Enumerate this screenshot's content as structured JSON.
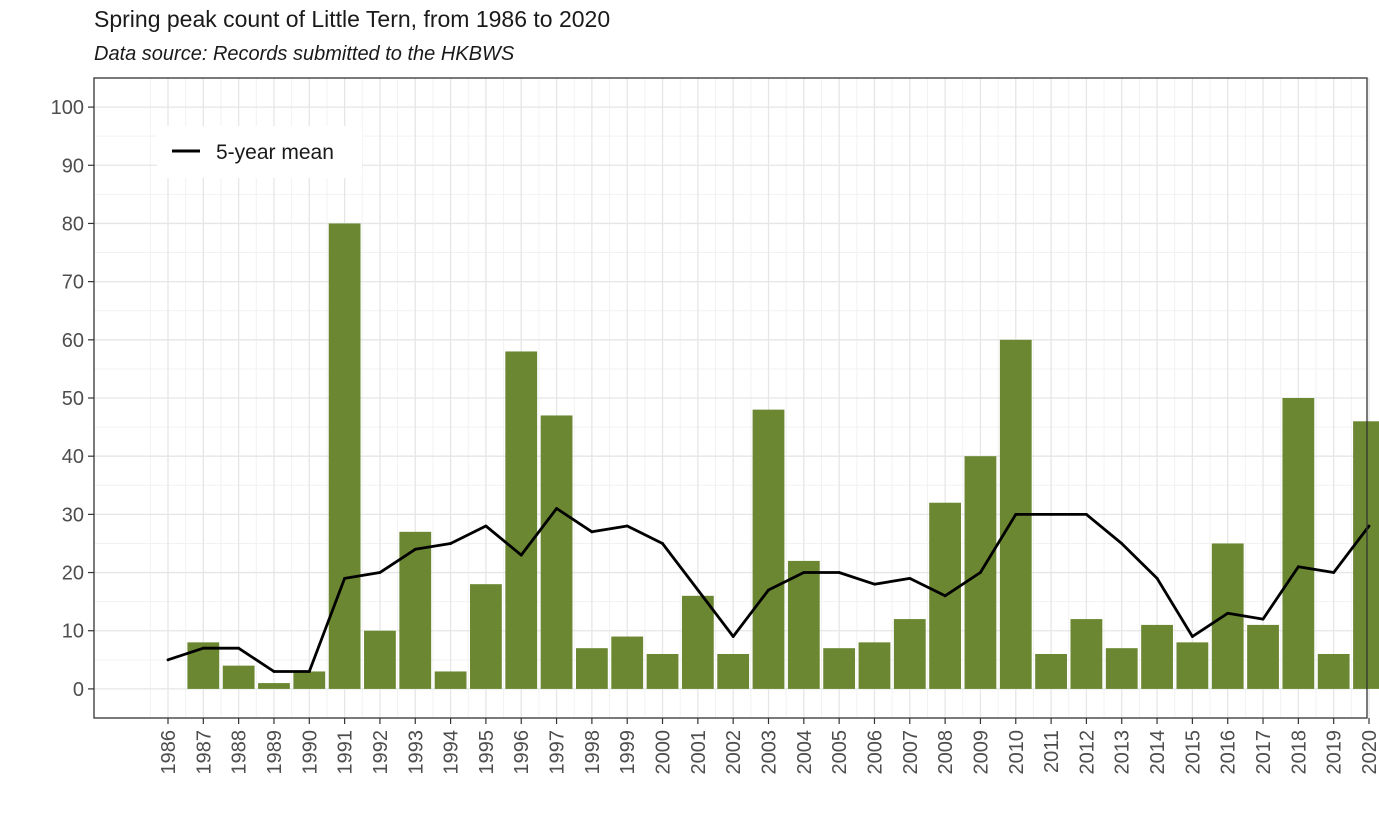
{
  "chart_data": {
    "type": "bar",
    "title": "Spring peak count of Little Tern, from 1986 to 2020",
    "subtitle": "Data source: Records submitted to the HKBWS",
    "xlabel": "",
    "ylabel": "",
    "ylim": [
      -5,
      105
    ],
    "yticks": [
      0,
      10,
      20,
      30,
      40,
      50,
      60,
      70,
      80,
      90,
      100
    ],
    "grid": true,
    "categories": [
      "1986",
      "1987",
      "1988",
      "1989",
      "1990",
      "1991",
      "1992",
      "1993",
      "1994",
      "1995",
      "1996",
      "1997",
      "1998",
      "1999",
      "2000",
      "2001",
      "2002",
      "2003",
      "2004",
      "2005",
      "2006",
      "2007",
      "2008",
      "2009",
      "2010",
      "2011",
      "2012",
      "2013",
      "2014",
      "2015",
      "2016",
      "2017",
      "2018",
      "2019",
      "2020"
    ],
    "series": [
      {
        "name": "Spring peak count",
        "kind": "bar",
        "color": "#6b8731",
        "values": [
          0,
          8,
          4,
          1,
          3,
          80,
          10,
          27,
          3,
          18,
          58,
          47,
          7,
          9,
          6,
          16,
          6,
          48,
          22,
          7,
          8,
          12,
          32,
          40,
          60,
          6,
          12,
          7,
          11,
          8,
          25,
          11,
          50,
          6,
          46
        ]
      },
      {
        "name": "5-year mean",
        "kind": "line",
        "color": "#000000",
        "values": [
          5,
          7,
          7,
          3,
          3,
          19,
          20,
          24,
          25,
          28,
          23,
          31,
          27,
          28,
          25,
          17,
          9,
          17,
          20,
          20,
          18,
          19,
          16,
          20,
          30,
          30,
          30,
          25,
          19,
          9,
          13,
          12,
          21,
          20,
          28
        ]
      }
    ],
    "legend": {
      "position": "top-left",
      "entries": [
        "5-year mean"
      ]
    }
  }
}
